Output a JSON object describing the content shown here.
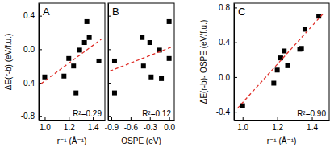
{
  "chart_data": [
    {
      "type": "scatter",
      "title": "A",
      "annotations": [
        "R²=0.29"
      ],
      "x_label": "r⁻¹ (Å⁻¹)",
      "y_label": "ΔE(r-b) (eV/f.u.)",
      "xlim": [
        0.95,
        1.5
      ],
      "xticks": [
        {
          "value": 1.0,
          "label": "1.0"
        },
        1.2,
        1.4
      ],
      "ylim": [
        -0.85,
        0.55
      ],
      "yticks": [
        -0.8,
        -0.4,
        {
          "value": 0,
          "label": "0.0"
        },
        0.4
      ],
      "series": [
        {
          "type": "scatter",
          "marker": "square",
          "color": "#000000",
          "x": [
            1.0,
            1.16,
            1.2,
            1.24,
            1.26,
            1.29,
            1.33,
            1.35,
            1.37,
            1.45
          ],
          "values": [
            -0.33,
            -0.32,
            -0.11,
            -0.2,
            -0.52,
            -0.01,
            0.08,
            0.33,
            0.14,
            -0.14
          ]
        },
        {
          "type": "line",
          "line_style": "dashed",
          "color": "#e0302a",
          "x": [
            0.97,
            1.47
          ],
          "values": [
            -0.41,
            0.12
          ]
        }
      ]
    },
    {
      "type": "scatter",
      "title": "B",
      "annotations": [
        "R²=0.12"
      ],
      "x_label": "OSPE (eV)",
      "tick_labels": "x",
      "xlim": [
        -0.95,
        0.08
      ],
      "xticks": [
        -0.9,
        -0.6,
        -0.3,
        {
          "value": 0,
          "label": "0.0"
        }
      ],
      "ylim": [
        -0.85,
        0.55
      ],
      "yticks": [
        -0.8,
        -0.4,
        0,
        0.4
      ],
      "series": [
        {
          "type": "scatter",
          "marker": "square",
          "color": "#000000",
          "x": [
            -0.85,
            -0.85,
            -0.42,
            -0.4,
            -0.3,
            -0.28,
            -0.15,
            -0.12,
            0.0,
            0.0
          ],
          "values": [
            -0.52,
            -0.14,
            0.14,
            -0.2,
            0.08,
            -0.33,
            -0.01,
            -0.35,
            0.33,
            -0.11
          ]
        },
        {
          "type": "line",
          "line_style": "dashed",
          "color": "#e0302a",
          "x": [
            -0.92,
            0.05
          ],
          "values": [
            -0.26,
            0.03
          ]
        }
      ]
    },
    {
      "type": "scatter",
      "title": "C",
      "annotations": [
        "R²=0.90"
      ],
      "x_label": "r⁻¹ (Å⁻¹)",
      "y_label": "ΔE(r-b)- OSPE (eV/f.u.)",
      "xlim": [
        0.95,
        1.5
      ],
      "xticks": [
        {
          "value": 1.0,
          "label": "1.0"
        },
        1.2,
        1.4
      ],
      "ylim": [
        -0.5,
        0.85
      ],
      "yticks": [
        -0.4,
        {
          "value": 0,
          "label": "0.0"
        },
        0.4,
        0.8
      ],
      "series": [
        {
          "type": "scatter",
          "marker": "square",
          "color": "#000000",
          "x": [
            1.0,
            1.18,
            1.2,
            1.22,
            1.24,
            1.26,
            1.33,
            1.34,
            1.36,
            1.44
          ],
          "values": [
            -0.33,
            -0.07,
            0.08,
            0.22,
            0.3,
            0.13,
            0.32,
            0.33,
            0.55,
            0.7
          ]
        },
        {
          "type": "line",
          "line_style": "dashed",
          "color": "#e0302a",
          "x": [
            0.97,
            1.47
          ],
          "values": [
            -0.36,
            0.74
          ]
        }
      ]
    }
  ]
}
